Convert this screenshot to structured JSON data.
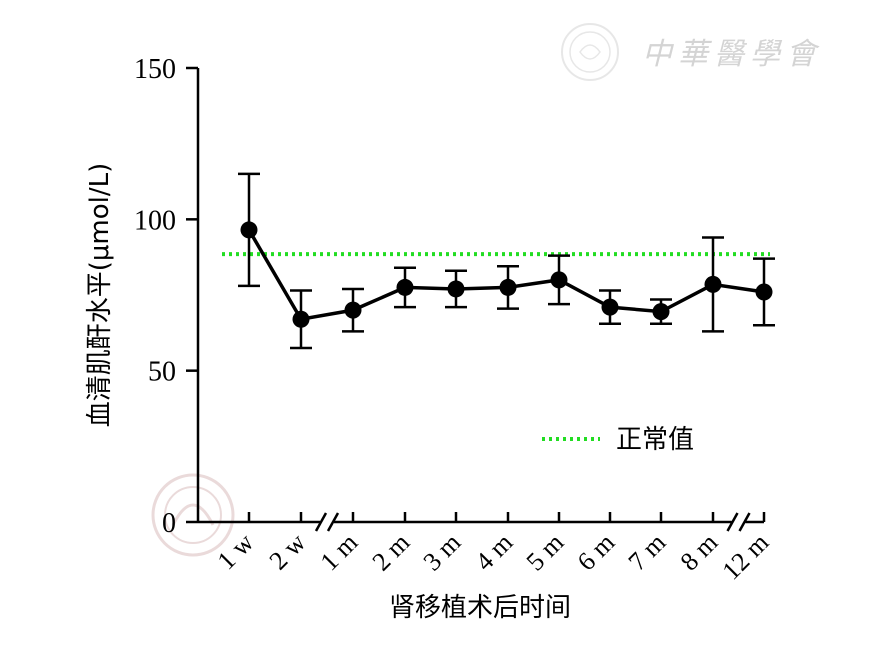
{
  "chart_data": {
    "type": "line",
    "xlabel": "肾移植术后时间",
    "ylabel": "血清肌酐水平(μmol/L)",
    "categories": [
      "1 w",
      "2 w",
      "1 m",
      "2 m",
      "3 m",
      "4 m",
      "5 m",
      "6 m",
      "7 m",
      "8 m",
      "12 m"
    ],
    "yticks": [
      0,
      50,
      100,
      150
    ],
    "ylim": [
      0,
      150
    ],
    "axis_breaks": [
      "between 2 w and 1 m",
      "between 8 m and 12 m"
    ],
    "series": [
      {
        "values": [
          96.5,
          67,
          70,
          77.5,
          77,
          77.5,
          80,
          71,
          69.5,
          78.5,
          76
        ],
        "error": [
          18.5,
          9.5,
          7,
          6.5,
          6,
          7,
          8,
          5.5,
          4,
          15.5,
          11
        ],
        "color": "#000000",
        "marker": "filled-circle"
      }
    ],
    "reference_line": {
      "value": 88.5,
      "label": "正常值",
      "color": "#22dd22",
      "style": "dotted"
    },
    "legend": {
      "placement": "bottom-right"
    },
    "grid": false
  },
  "watermark": {
    "text": "中華醫學會"
  }
}
